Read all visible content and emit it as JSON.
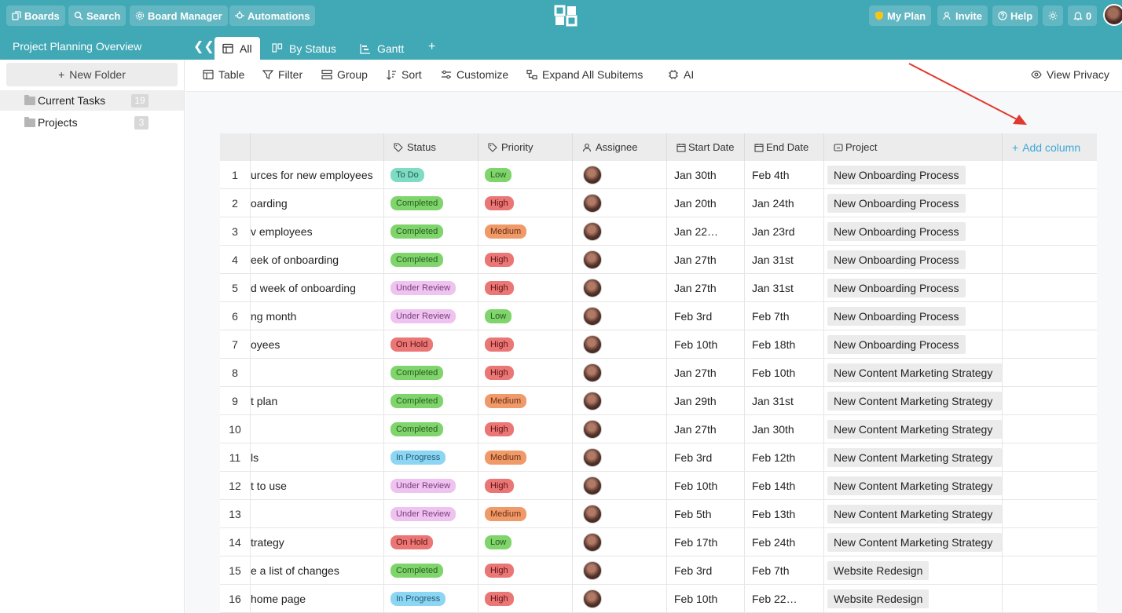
{
  "topbar": {
    "boards": "Boards",
    "search": "Search",
    "board_manager": "Board Manager",
    "automations": "Automations",
    "my_plan": "My Plan",
    "invite": "Invite",
    "help": "Help",
    "notifications": "0"
  },
  "subbar": {
    "project_title": "Project Planning Overview",
    "tabs": [
      {
        "label": "All",
        "icon": "table-icon"
      },
      {
        "label": "By Status",
        "icon": "kanban-icon"
      },
      {
        "label": "Gantt",
        "icon": "gantt-icon"
      }
    ],
    "add_tab": "+"
  },
  "sidebar": {
    "new_folder": "New Folder",
    "folders": [
      {
        "label": "Current Tasks",
        "count": "19"
      },
      {
        "label": "Projects",
        "count": "3"
      }
    ]
  },
  "toolbar": {
    "table": "Table",
    "filter": "Filter",
    "group": "Group",
    "sort": "Sort",
    "customize": "Customize",
    "expand": "Expand All Subitems",
    "ai": "AI",
    "view_privacy": "View Privacy"
  },
  "table": {
    "headers": {
      "status": "Status",
      "priority": "Priority",
      "assignee": "Assignee",
      "start": "Start Date",
      "end": "End Date",
      "project": "Project",
      "add_column": "Add column"
    },
    "rows": [
      {
        "num": "1",
        "name": "urces for new employees",
        "status": "To Do",
        "priority": "Low",
        "start": "Jan 30th",
        "end": "Feb 4th",
        "project": "New Onboarding Process"
      },
      {
        "num": "2",
        "name": "oarding",
        "status": "Completed",
        "priority": "High",
        "start": "Jan 20th",
        "end": "Jan 24th",
        "project": "New Onboarding Process"
      },
      {
        "num": "3",
        "name": "v employees",
        "status": "Completed",
        "priority": "Medium",
        "start": "Jan 22…",
        "end": "Jan 23rd",
        "project": "New Onboarding Process"
      },
      {
        "num": "4",
        "name": "eek of onboarding",
        "status": "Completed",
        "priority": "High",
        "start": "Jan 27th",
        "end": "Jan 31st",
        "project": "New Onboarding Process"
      },
      {
        "num": "5",
        "name": "d week of onboarding",
        "status": "Under Review",
        "priority": "High",
        "start": "Jan 27th",
        "end": "Jan 31st",
        "project": "New Onboarding Process"
      },
      {
        "num": "6",
        "name": "ng month",
        "status": "Under Review",
        "priority": "Low",
        "start": "Feb 3rd",
        "end": "Feb 7th",
        "project": "New Onboarding Process"
      },
      {
        "num": "7",
        "name": "oyees",
        "status": "On Hold",
        "priority": "High",
        "start": "Feb 10th",
        "end": "Feb 18th",
        "project": "New Onboarding Process"
      },
      {
        "num": "8",
        "name": "",
        "status": "Completed",
        "priority": "High",
        "start": "Jan 27th",
        "end": "Feb 10th",
        "project": "New Content Marketing Strategy"
      },
      {
        "num": "9",
        "name": "t plan",
        "status": "Completed",
        "priority": "Medium",
        "start": "Jan 29th",
        "end": "Jan 31st",
        "project": "New Content Marketing Strategy"
      },
      {
        "num": "10",
        "name": "",
        "status": "Completed",
        "priority": "High",
        "start": "Jan 27th",
        "end": "Jan 30th",
        "project": "New Content Marketing Strategy"
      },
      {
        "num": "11",
        "name": "ls",
        "status": "In Progress",
        "priority": "Medium",
        "start": "Feb 3rd",
        "end": "Feb 12th",
        "project": "New Content Marketing Strategy"
      },
      {
        "num": "12",
        "name": "t to use",
        "status": "Under Review",
        "priority": "High",
        "start": "Feb 10th",
        "end": "Feb 14th",
        "project": "New Content Marketing Strategy"
      },
      {
        "num": "13",
        "name": "",
        "status": "Under Review",
        "priority": "Medium",
        "start": "Feb 5th",
        "end": "Feb 13th",
        "project": "New Content Marketing Strategy"
      },
      {
        "num": "14",
        "name": "trategy",
        "status": "On Hold",
        "priority": "Low",
        "start": "Feb 17th",
        "end": "Feb 24th",
        "project": "New Content Marketing Strategy"
      },
      {
        "num": "15",
        "name": "e a list of changes",
        "status": "Completed",
        "priority": "High",
        "start": "Feb 3rd",
        "end": "Feb 7th",
        "project": "Website Redesign"
      },
      {
        "num": "16",
        "name": "home page",
        "status": "In Progress",
        "priority": "High",
        "start": "Feb 10th",
        "end": "Feb 22…",
        "project": "Website Redesign"
      }
    ]
  },
  "colors": {
    "brand": "#41a8b5",
    "status": {
      "To Do": {
        "bg": "#7fdcc4",
        "fg": "#1d5b4b"
      },
      "Completed": {
        "bg": "#7fd46c",
        "fg": "#265b1d"
      },
      "Under Review": {
        "bg": "#eec3ef",
        "fg": "#7a3b7d"
      },
      "On Hold": {
        "bg": "#ea7676",
        "fg": "#5e1515"
      },
      "In Progress": {
        "bg": "#8dd6f3",
        "fg": "#1e5a73"
      }
    },
    "priority": {
      "Low": {
        "bg": "#7fd46c",
        "fg": "#265b1d"
      },
      "High": {
        "bg": "#ea7676",
        "fg": "#5e1515"
      },
      "Medium": {
        "bg": "#f09a6a",
        "fg": "#6a2e10"
      }
    },
    "annotation_arrow": "#e0392f"
  }
}
